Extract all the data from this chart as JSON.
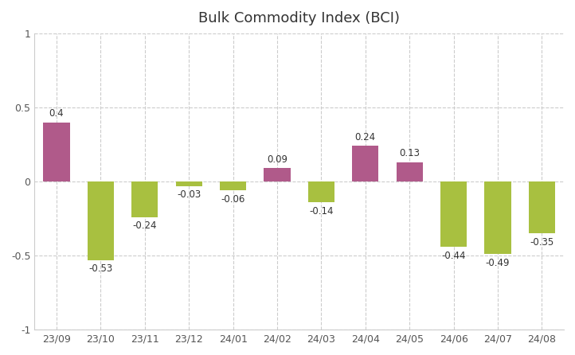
{
  "title": "Bulk Commodity Index (BCI)",
  "categories": [
    "23/09",
    "23/10",
    "23/11",
    "23/12",
    "24/01",
    "24/02",
    "24/03",
    "24/04",
    "24/05",
    "24/06",
    "24/07",
    "24/08"
  ],
  "values": [
    0.4,
    -0.53,
    -0.24,
    -0.03,
    -0.06,
    0.09,
    -0.14,
    0.24,
    0.13,
    -0.44,
    -0.49,
    -0.35
  ],
  "bar_colors": [
    "#b05a8a",
    "#a8c040",
    "#a8c040",
    "#a8c040",
    "#a8c040",
    "#b05a8a",
    "#a8c040",
    "#b05a8a",
    "#b05a8a",
    "#a8c040",
    "#a8c040",
    "#a8c040"
  ],
  "ylim": [
    -1.0,
    1.0
  ],
  "yticks": [
    -1.0,
    -0.5,
    0.0,
    0.5,
    1.0
  ],
  "background_color": "#ffffff",
  "grid_color": "#cccccc",
  "title_fontsize": 13,
  "label_fontsize": 9,
  "bar_width": 0.6,
  "value_label_fontsize": 8.5
}
